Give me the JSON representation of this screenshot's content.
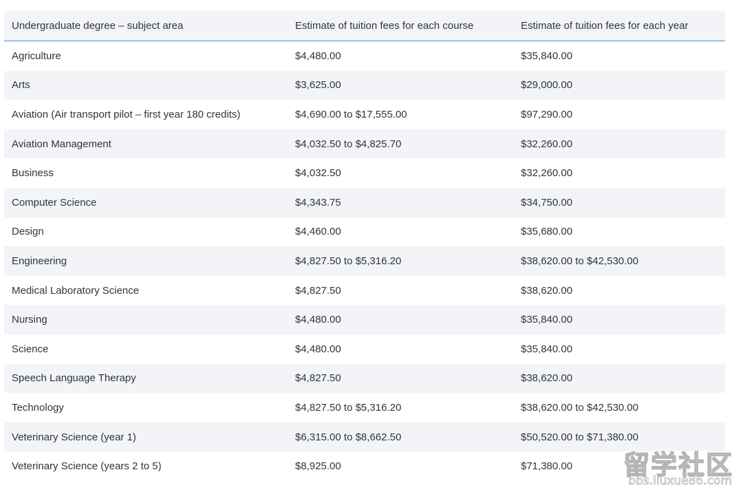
{
  "table": {
    "headers": [
      "Undergraduate degree – subject area",
      "Estimate of tuition fees for each course",
      "Estimate of tuition fees for each year"
    ],
    "rows": [
      [
        "Agriculture",
        "$4,480.00",
        "$35,840.00"
      ],
      [
        "Arts",
        "$3,625.00",
        "$29,000.00"
      ],
      [
        "Aviation (Air transport pilot – first year 180 credits)",
        "$4,690.00 to $17,555.00",
        "$97,290.00"
      ],
      [
        "Aviation Management",
        "$4,032.50 to $4,825.70",
        "$32,260.00"
      ],
      [
        "Business",
        "$4,032.50",
        "$32,260.00"
      ],
      [
        "Computer Science",
        "$4,343.75",
        "$34,750.00"
      ],
      [
        "Design",
        "$4,460.00",
        "$35,680.00"
      ],
      [
        "Engineering",
        "$4,827.50 to $5,316.20",
        "$38,620.00 to $42,530.00"
      ],
      [
        "Medical Laboratory Science",
        "$4,827.50",
        "$38,620.00"
      ],
      [
        "Nursing",
        "$4,480.00",
        "$35,840.00"
      ],
      [
        "Science",
        "$4,480.00",
        "$35,840.00"
      ],
      [
        "Speech Language Therapy",
        "$4,827.50",
        "$38,620.00"
      ],
      [
        "Technology",
        "$4,827.50 to $5,316.20",
        "$38,620.00 to $42,530.00"
      ],
      [
        "Veterinary Science (year 1)",
        "$6,315.00 to $8,662.50",
        "$50,520.00 to $71,380.00"
      ],
      [
        "Veterinary Science (years 2 to 5)",
        "$8,925.00",
        "$71,380.00"
      ]
    ]
  },
  "watermark": {
    "main": "留学社区",
    "sub": "bbs.liuxue86.com"
  },
  "colors": {
    "header_border": "#4a8fd0",
    "stripe": "#f2f4f7",
    "text": "#2f3440"
  }
}
